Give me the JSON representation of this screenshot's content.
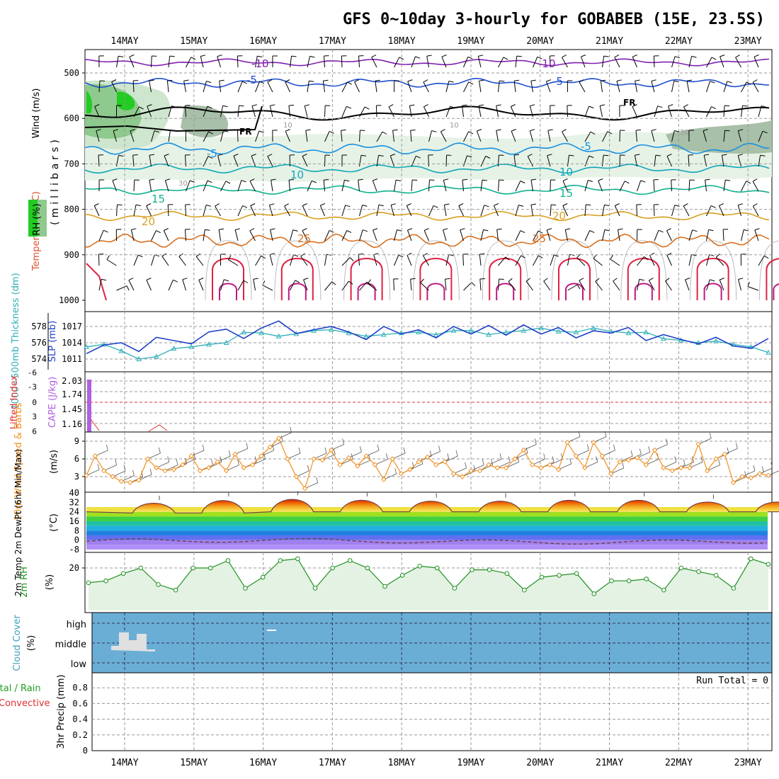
{
  "title": "GFS 0~10day 3-hourly for GOBABEB (15E, 23.5S)",
  "dates": [
    "14MAY",
    "15MAY",
    "16MAY",
    "17MAY",
    "18MAY",
    "19MAY",
    "20MAY",
    "21MAY",
    "22MAY",
    "23MAY"
  ],
  "colors": {
    "temp_label": "#e05030",
    "rh_label": "#20b020",
    "thick": "#30b0b8",
    "slp": "#2040c8",
    "lifted": "#e03030",
    "cape": "#b060e0",
    "wind10": "#f09020",
    "rh2m": "#209020",
    "cloud_bg": "#6aaed6",
    "cloud_label": "#40a0c0",
    "precip_total": "#20a020",
    "precip_conv": "#e03030"
  },
  "panels": {
    "upper": {
      "ylabel_wind": "Wind (m/s)",
      "ylabel_temp": "Temperature (°C)",
      "ylabel_rh": "RH (%)",
      "ylabel_mb": "(millibars)",
      "yticks": [
        "500",
        "600",
        "700",
        "800",
        "900",
        "1000"
      ],
      "isotherm_labels": [
        "-10",
        "-10",
        "-5",
        "-5",
        "FR",
        "FR",
        "-5",
        "-5",
        "10",
        "10",
        "15",
        "15",
        "20",
        "20",
        "25",
        "25"
      ],
      "rh_labels": [
        "10",
        "10",
        "30",
        "30"
      ]
    },
    "thick": {
      "ylabel_left": "1000~500mb Thickness (dm)",
      "ylabel_right": "SLP (mb)",
      "yticks_left": [
        "578",
        "576",
        "574"
      ],
      "yticks_right": [
        "1017",
        "1014",
        "1011"
      ]
    },
    "cape": {
      "ylabel_left": "Lifted Index",
      "ylabel_right": "CAPE (J/kg)",
      "yticks_left": [
        "-6",
        "-3",
        "0",
        "3",
        "6"
      ],
      "yticks_right": [
        "2.03",
        "1.74",
        "1.45",
        "1.16"
      ]
    },
    "wind": {
      "ylabel": "10m Wind Speed & Barbs",
      "ylabel_unit": "(m/s)",
      "yticks": [
        "9",
        "6",
        "3"
      ]
    },
    "temp": {
      "ylabel": "2m Temp 2m DewPt (6hr Min/Max)",
      "ylabel_unit": "(°C)",
      "yticks": [
        "40",
        "32",
        "24",
        "16",
        "8",
        "0",
        "-8"
      ]
    },
    "rh": {
      "ylabel": "2m RH",
      "ylabel_unit": "(%)",
      "yticks": [
        "20"
      ]
    },
    "cloud": {
      "ylabel": "Cloud Cover",
      "ylabel_unit": "(%)",
      "levels": [
        "high",
        "middle",
        "low"
      ]
    },
    "precip": {
      "ylabel_total": "Total / Rain",
      "ylabel_conv": "Convective",
      "ylabel": "3hr Precip (mm)",
      "yticks": [
        "0.8",
        "0.6",
        "0.4",
        "0.2",
        "0"
      ],
      "run_total": "Run Total = 0"
    }
  },
  "chart_data": [
    {
      "type": "line",
      "title": "1000~500mb Thickness (dm) / SLP (mb)",
      "x": [
        "13MAY12",
        "13MAY18",
        "14MAY00",
        "14MAY06",
        "14MAY12",
        "14MAY18",
        "15MAY00",
        "15MAY06",
        "15MAY12",
        "15MAY18",
        "16MAY00",
        "16MAY06",
        "16MAY12",
        "16MAY18",
        "17MAY00",
        "17MAY06",
        "17MAY12",
        "17MAY18",
        "18MAY00",
        "18MAY06",
        "18MAY12",
        "18MAY18",
        "19MAY00",
        "19MAY06",
        "19MAY12",
        "19MAY18",
        "20MAY00",
        "20MAY06",
        "20MAY12",
        "20MAY18",
        "21MAY00",
        "21MAY06",
        "21MAY12",
        "21MAY18",
        "22MAY00",
        "22MAY06",
        "22MAY12",
        "22MAY18",
        "23MAY00",
        "23MAY06"
      ],
      "series": [
        {
          "name": "Thickness",
          "values": [
            575.5,
            575.8,
            575.0,
            574.0,
            574.3,
            575.3,
            575.5,
            575.8,
            576.0,
            577.3,
            577.2,
            576.8,
            577.1,
            577.5,
            577.6,
            577.2,
            576.8,
            577.0,
            577.2,
            577.3,
            577.0,
            577.5,
            577.5,
            577.0,
            577.3,
            577.5,
            577.8,
            577.4,
            577.3,
            577.8,
            577.4,
            577.2,
            577.3,
            576.5,
            576.3,
            576.0,
            576.2,
            575.8,
            575.5,
            574.8
          ]
        },
        {
          "name": "SLP",
          "values": [
            1012.0,
            1013.6,
            1014.0,
            1012.4,
            1015.0,
            1014.4,
            1013.8,
            1016.0,
            1016.5,
            1014.8,
            1016.7,
            1018.0,
            1015.7,
            1016.4,
            1017.0,
            1016.0,
            1014.6,
            1017.0,
            1015.6,
            1016.4,
            1014.9,
            1017.0,
            1015.6,
            1017.2,
            1015.4,
            1017.3,
            1015.6,
            1016.8,
            1014.9,
            1016.2,
            1015.8,
            1016.8,
            1014.4,
            1015.5,
            1014.6,
            1013.8,
            1015.0,
            1013.4,
            1013.0,
            1014.8
          ]
        }
      ]
    },
    {
      "type": "line",
      "title": "10m Wind Speed (m/s)",
      "x": [
        "13MAY12",
        "13MAY15",
        "13MAY18",
        "13MAY21",
        "14MAY00",
        "14MAY03",
        "14MAY06",
        "14MAY09",
        "14MAY12",
        "14MAY15",
        "14MAY18",
        "14MAY21",
        "15MAY00",
        "15MAY03",
        "15MAY06",
        "15MAY09",
        "15MAY12",
        "15MAY15",
        "15MAY18",
        "15MAY21",
        "16MAY00",
        "16MAY03",
        "16MAY06",
        "16MAY09",
        "16MAY12",
        "16MAY15",
        "16MAY18",
        "16MAY21",
        "17MAY00",
        "17MAY03",
        "17MAY06",
        "17MAY09",
        "17MAY12",
        "17MAY15",
        "17MAY18",
        "17MAY21",
        "18MAY00",
        "18MAY03",
        "18MAY06",
        "18MAY09",
        "18MAY12",
        "18MAY15",
        "18MAY18",
        "18MAY21",
        "19MAY00",
        "19MAY03",
        "19MAY06",
        "19MAY09",
        "19MAY12",
        "19MAY15",
        "19MAY18",
        "19MAY21",
        "20MAY00",
        "20MAY03",
        "20MAY06",
        "20MAY09",
        "20MAY12",
        "20MAY15",
        "20MAY18",
        "20MAY21",
        "21MAY00",
        "21MAY03",
        "21MAY06",
        "21MAY09",
        "21MAY12",
        "21MAY15",
        "21MAY18",
        "21MAY21",
        "22MAY00",
        "22MAY03",
        "22MAY06",
        "22MAY09",
        "22MAY12",
        "22MAY15",
        "22MAY18",
        "22MAY21",
        "23MAY00",
        "23MAY03",
        "23MAY06"
      ],
      "series": [
        {
          "name": "Wind Speed",
          "values": [
            3.2,
            6.5,
            4.0,
            3.0,
            2.2,
            2.0,
            2.4,
            6.0,
            4.5,
            4.0,
            4.2,
            5.0,
            6.5,
            4.0,
            4.5,
            5.5,
            4.0,
            6.8,
            4.5,
            5.0,
            6.5,
            8.0,
            9.5,
            6.0,
            3.0,
            1.0,
            6.0,
            5.8,
            7.5,
            5.0,
            6.2,
            4.8,
            6.5,
            5.0,
            2.5,
            6.0,
            3.5,
            4.2,
            5.5,
            6.3,
            5.0,
            5.5,
            3.5,
            3.0,
            4.0,
            4.0,
            5.0,
            4.5,
            4.5,
            6.0,
            7.5,
            5.0,
            4.5,
            5.0,
            4.2,
            8.8,
            6.5,
            4.5,
            8.8,
            6.5,
            3.5,
            5.5,
            5.8,
            6.2,
            5.0,
            7.5,
            4.5,
            4.0,
            4.5,
            4.5,
            8.5,
            4.0,
            6.0,
            6.8,
            2.0,
            3.0,
            2.8,
            3.5,
            3.2
          ]
        }
      ]
    },
    {
      "type": "line",
      "title": "2m RH (%)",
      "x": [
        "13MAY12",
        "13MAY18",
        "14MAY00",
        "14MAY06",
        "14MAY12",
        "14MAY18",
        "15MAY00",
        "15MAY06",
        "15MAY12",
        "15MAY18",
        "16MAY00",
        "16MAY06",
        "16MAY12",
        "16MAY18",
        "17MAY00",
        "17MAY06",
        "17MAY12",
        "17MAY18",
        "18MAY00",
        "18MAY06",
        "18MAY12",
        "18MAY18",
        "19MAY00",
        "19MAY06",
        "19MAY12",
        "19MAY18",
        "20MAY00",
        "20MAY06",
        "20MAY12",
        "20MAY18",
        "21MAY00",
        "21MAY06",
        "21MAY12",
        "21MAY18",
        "22MAY00",
        "22MAY06",
        "22MAY12",
        "22MAY18",
        "23MAY00",
        "23MAY06"
      ],
      "series": [
        {
          "name": "2m RH",
          "values": [
            12,
            13,
            17,
            20,
            11,
            8,
            20,
            20,
            24,
            9,
            15,
            24,
            25,
            9,
            20,
            24,
            20,
            10,
            16,
            21,
            20,
            9,
            19,
            19,
            17,
            8,
            15,
            16,
            17,
            6,
            13,
            13,
            14,
            8,
            20,
            18,
            16,
            9,
            25,
            22
          ]
        }
      ]
    },
    {
      "type": "area",
      "title": "2m Temp / DewPt (°C)",
      "x": [
        "14MAY",
        "15MAY",
        "16MAY",
        "17MAY",
        "18MAY",
        "19MAY",
        "20MAY",
        "21MAY",
        "22MAY",
        "23MAY"
      ],
      "series": [
        {
          "name": "Max Temp",
          "values": [
            34,
            37,
            38,
            37,
            36,
            36,
            37,
            37,
            35,
            35
          ]
        },
        {
          "name": "Min Temp",
          "values": [
            23,
            23,
            24,
            24,
            24,
            24,
            24,
            24,
            24,
            24
          ]
        },
        {
          "name": "DewPt",
          "values": [
            -2,
            -1,
            2,
            -1,
            -1,
            -2,
            -3,
            -2,
            1,
            2
          ]
        }
      ]
    },
    {
      "type": "bar",
      "title": "Cloud Cover (%)",
      "x": [
        "14MAY",
        "16MAY"
      ],
      "series": [
        {
          "name": "middle",
          "values": [
            1,
            0
          ]
        },
        {
          "name": "high",
          "values": [
            0,
            1
          ]
        }
      ]
    },
    {
      "type": "bar",
      "title": "3hr Precip (mm)",
      "x": [],
      "series": [
        {
          "name": "Total / Rain",
          "values": []
        }
      ],
      "ylim": [
        0,
        0.9
      ]
    }
  ]
}
